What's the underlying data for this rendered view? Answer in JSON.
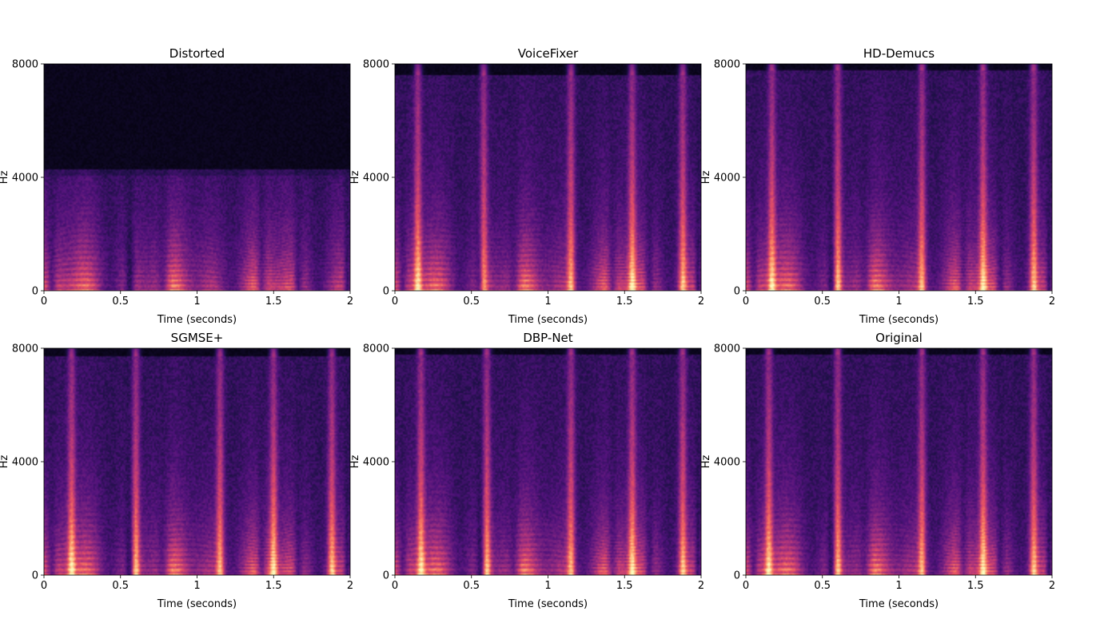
{
  "chart_data": [
    {
      "type": "heatmap",
      "title": "Distorted",
      "xlabel": "Time (seconds)",
      "ylabel": "Hz",
      "xlim": [
        0,
        2
      ],
      "ylim": [
        0,
        8000
      ],
      "xticks": [
        0,
        0.5,
        1,
        1.5,
        2
      ],
      "xtick_labels": [
        "0",
        "0.5",
        "1",
        "1.5",
        "2"
      ],
      "yticks": [
        0,
        4000,
        8000
      ],
      "ytick_labels": [
        "0",
        "4000",
        "8000"
      ],
      "colormap": "magma",
      "bandwidth_hz": 4300,
      "bursts_s": [],
      "partial_spacing_hz": 160
    },
    {
      "type": "heatmap",
      "title": "VoiceFixer",
      "xlabel": "Time (seconds)",
      "ylabel": "Hz",
      "xlim": [
        0,
        2
      ],
      "ylim": [
        0,
        8000
      ],
      "xticks": [
        0,
        0.5,
        1,
        1.5,
        2
      ],
      "xtick_labels": [
        "0",
        "0.5",
        "1",
        "1.5",
        "2"
      ],
      "yticks": [
        0,
        4000,
        8000
      ],
      "ytick_labels": [
        "0",
        "4000",
        "8000"
      ],
      "colormap": "magma",
      "bandwidth_hz": 7600,
      "bursts_s": [
        0.15,
        0.58,
        1.15,
        1.55,
        1.88
      ],
      "partial_spacing_hz": 160
    },
    {
      "type": "heatmap",
      "title": "HD-Demucs",
      "xlabel": "Time (seconds)",
      "ylabel": "Hz",
      "xlim": [
        0,
        2
      ],
      "ylim": [
        0,
        8000
      ],
      "xticks": [
        0,
        0.5,
        1,
        1.5,
        2
      ],
      "xtick_labels": [
        "0",
        "0.5",
        "1",
        "1.5",
        "2"
      ],
      "yticks": [
        0,
        4000,
        8000
      ],
      "ytick_labels": [
        "0",
        "4000",
        "8000"
      ],
      "colormap": "magma",
      "bandwidth_hz": 7800,
      "bursts_s": [
        0.17,
        0.6,
        1.15,
        1.55,
        1.88
      ],
      "partial_spacing_hz": 160
    },
    {
      "type": "heatmap",
      "title": "SGMSE+",
      "xlabel": "Time (seconds)",
      "ylabel": "Hz",
      "xlim": [
        0,
        2
      ],
      "ylim": [
        0,
        8000
      ],
      "xticks": [
        0,
        0.5,
        1,
        1.5,
        2
      ],
      "xtick_labels": [
        "0",
        "0.5",
        "1",
        "1.5",
        "2"
      ],
      "yticks": [
        0,
        4000,
        8000
      ],
      "ytick_labels": [
        "0",
        "4000",
        "8000"
      ],
      "colormap": "magma",
      "bandwidth_hz": 7700,
      "bursts_s": [
        0.18,
        0.6,
        1.15,
        1.5,
        1.88
      ],
      "partial_spacing_hz": 160
    },
    {
      "type": "heatmap",
      "title": "DBP-Net",
      "xlabel": "Time (seconds)",
      "ylabel": "Hz",
      "xlim": [
        0,
        2
      ],
      "ylim": [
        0,
        8000
      ],
      "xticks": [
        0,
        0.5,
        1,
        1.5,
        2
      ],
      "xtick_labels": [
        "0",
        "0.5",
        "1",
        "1.5",
        "2"
      ],
      "yticks": [
        0,
        4000,
        8000
      ],
      "ytick_labels": [
        "0",
        "4000",
        "8000"
      ],
      "colormap": "magma",
      "bandwidth_hz": 7800,
      "bursts_s": [
        0.17,
        0.6,
        1.15,
        1.55,
        1.88
      ],
      "partial_spacing_hz": 160
    },
    {
      "type": "heatmap",
      "title": "Original",
      "xlabel": "Time (seconds)",
      "ylabel": "Hz",
      "xlim": [
        0,
        2
      ],
      "ylim": [
        0,
        8000
      ],
      "xticks": [
        0,
        0.5,
        1,
        1.5,
        2
      ],
      "xtick_labels": [
        "0",
        "0.5",
        "1",
        "1.5",
        "2"
      ],
      "yticks": [
        0,
        4000,
        8000
      ],
      "ytick_labels": [
        "0",
        "4000",
        "8000"
      ],
      "colormap": "magma",
      "bandwidth_hz": 7800,
      "bursts_s": [
        0.15,
        0.6,
        1.15,
        1.55,
        1.88
      ],
      "partial_spacing_hz": 160
    }
  ]
}
